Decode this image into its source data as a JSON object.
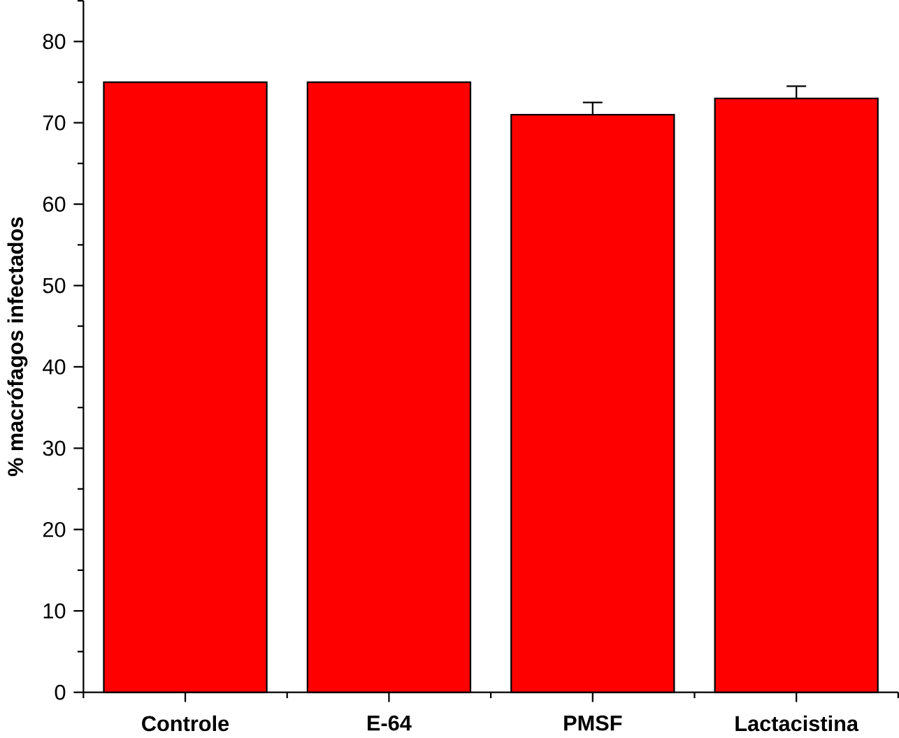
{
  "chart_data": {
    "type": "bar",
    "ylabel": "% macrófagos infectados",
    "categories": [
      "Controle",
      "E-64",
      "PMSF",
      "Lactacistina"
    ],
    "values": [
      75,
      75,
      71,
      73
    ],
    "errors": [
      null,
      null,
      1.5,
      1.5
    ],
    "color": "#ff0000",
    "ylim": [
      0,
      85
    ],
    "yticks": [
      0,
      10,
      20,
      30,
      40,
      50,
      60,
      70,
      80
    ],
    "grid": false
  }
}
